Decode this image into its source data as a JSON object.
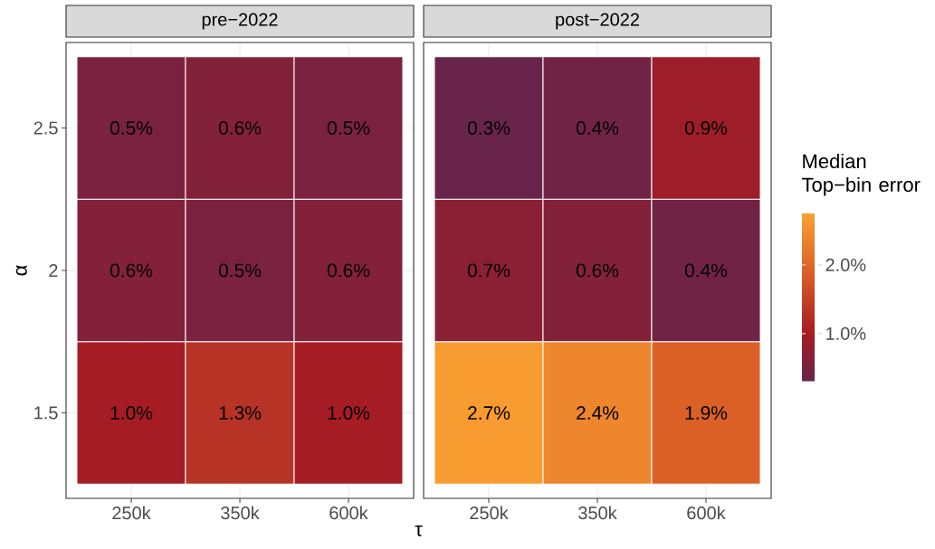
{
  "chart_data": [
    {
      "type": "heatmap",
      "title": "pre−2022",
      "xlabel": "τ",
      "ylabel": "α",
      "categories": [
        "250k",
        "350k",
        "600k"
      ],
      "y_categories": [
        "2.5",
        "2",
        "1.5"
      ],
      "cells": [
        [
          0.5,
          0.6,
          0.5
        ],
        [
          0.6,
          0.5,
          0.6
        ],
        [
          1.0,
          1.3,
          1.0
        ]
      ],
      "cell_labels": [
        [
          "0.5%",
          "0.6%",
          "0.5%"
        ],
        [
          "0.6%",
          "0.5%",
          "0.6%"
        ],
        [
          "1.0%",
          "1.3%",
          "1.0%"
        ]
      ],
      "grid": true
    },
    {
      "type": "heatmap",
      "title": "post−2022",
      "categories": [
        "250k",
        "350k",
        "600k"
      ],
      "y_categories": [
        "2.5",
        "2",
        "1.5"
      ],
      "cells": [
        [
          0.3,
          0.4,
          0.9
        ],
        [
          0.7,
          0.6,
          0.4
        ],
        [
          2.7,
          2.4,
          1.9
        ]
      ],
      "cell_labels": [
        [
          "0.3%",
          "0.4%",
          "0.9%"
        ],
        [
          "0.7%",
          "0.6%",
          "0.4%"
        ],
        [
          "2.7%",
          "2.4%",
          "1.9%"
        ]
      ],
      "clabel": "Median Top−bin error",
      "clim": [
        0.3,
        2.75
      ],
      "cticks": [
        {
          "value": 1.0,
          "label": "1.0%"
        },
        {
          "value": 2.0,
          "label": "2.0%"
        }
      ],
      "grid": true,
      "tick_labels": "x"
    }
  ]
}
